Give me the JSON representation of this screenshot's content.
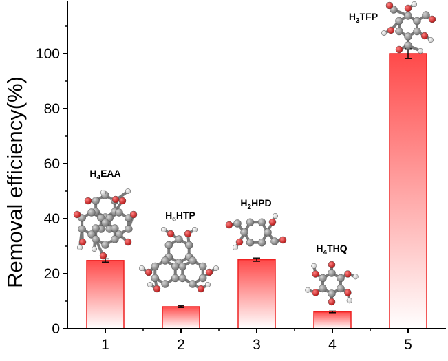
{
  "chart_data": {
    "type": "bar",
    "categories": [
      "1",
      "2",
      "3",
      "4",
      "5"
    ],
    "values": [
      24.8,
      8.0,
      25.1,
      6.1,
      100.0
    ],
    "errors": [
      0.6,
      0.3,
      0.6,
      0.3,
      1.8
    ],
    "ylabel": "Removal efficiency(%)",
    "xlabel": "",
    "ylim": [
      0,
      120
    ],
    "yticks": [
      0,
      20,
      40,
      60,
      80,
      100
    ],
    "grid": false,
    "bar_color_top": "#ff4a4a",
    "bar_color_bottom": "#ffffff",
    "bar_edge_color": "#ee2222",
    "annotations": [
      {
        "category": "1",
        "label": {
          "base": "H",
          "sub": "4",
          "rest": "EAA"
        }
      },
      {
        "category": "2",
        "label": {
          "base": "H",
          "sub": "6",
          "rest": "HTP"
        }
      },
      {
        "category": "3",
        "label": {
          "base": "H",
          "sub": "2",
          "rest": "HPD"
        }
      },
      {
        "category": "4",
        "label": {
          "base": "H",
          "sub": "4",
          "rest": "THQ"
        }
      },
      {
        "category": "5",
        "label": {
          "base": "H",
          "sub": "3",
          "rest": "TFP"
        }
      }
    ]
  },
  "colors": {
    "carbon": "#8c8c8c",
    "oxygen": "#d42020",
    "hydrogen": "#f2f2f2"
  }
}
